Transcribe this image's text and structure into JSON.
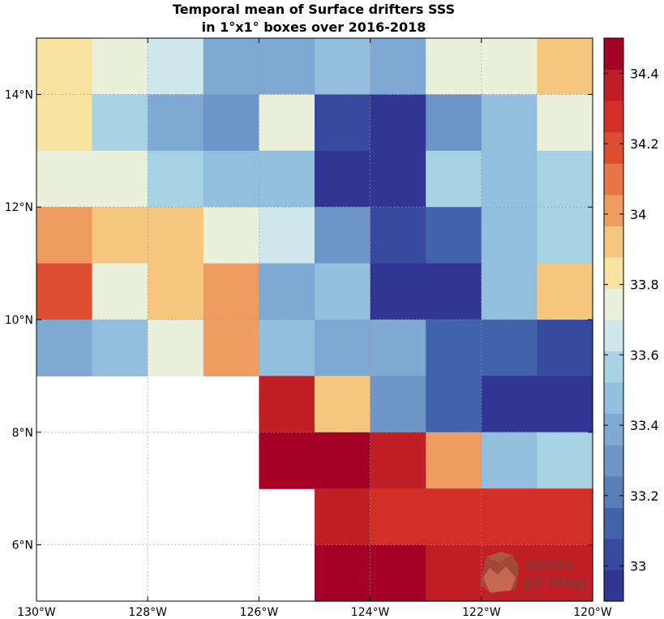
{
  "chart_data": {
    "type": "heatmap",
    "title": [
      "Temporal mean of Surface drifters SSS",
      "in 1°x1° boxes over 2016-2018"
    ],
    "x_edges": [
      -130,
      -129,
      -128,
      -127,
      -126,
      -125,
      -124,
      -123,
      -122,
      -121,
      -120
    ],
    "y_edges": [
      5,
      6,
      7,
      8,
      9,
      10,
      11,
      12,
      13,
      14,
      15
    ],
    "xlim": [
      -130,
      -120
    ],
    "ylim": [
      5,
      15
    ],
    "xticks": [
      -130,
      -128,
      -126,
      -124,
      -122,
      -120
    ],
    "xtick_labels": [
      "130°W",
      "128°W",
      "126°W",
      "124°W",
      "122°W",
      "120°W"
    ],
    "yticks": [
      6,
      8,
      10,
      12,
      14
    ],
    "ytick_labels": [
      "6°N",
      "8°N",
      "10°N",
      "12°N",
      "14°N"
    ],
    "grid": true,
    "values_rows_north_to_south": [
      [
        33.85,
        33.75,
        33.65,
        33.4,
        33.4,
        33.5,
        33.4,
        33.75,
        33.75,
        33.95
      ],
      [
        33.85,
        33.55,
        33.4,
        33.3,
        33.75,
        33.05,
        32.95,
        33.3,
        33.45,
        33.75
      ],
      [
        33.75,
        33.75,
        33.55,
        33.45,
        33.45,
        32.95,
        32.95,
        33.55,
        33.45,
        33.55
      ],
      [
        34.05,
        33.95,
        33.95,
        33.75,
        33.65,
        33.3,
        33.05,
        33.15,
        33.45,
        33.55
      ],
      [
        34.15,
        33.75,
        33.95,
        34.05,
        33.35,
        33.45,
        32.95,
        32.95,
        33.45,
        33.95
      ],
      [
        33.35,
        33.45,
        33.75,
        34.05,
        33.45,
        33.35,
        33.35,
        33.15,
        33.15,
        33.05
      ],
      [
        null,
        null,
        null,
        null,
        34.35,
        33.95,
        33.3,
        33.15,
        32.95,
        32.95
      ],
      [
        null,
        null,
        null,
        null,
        34.5,
        34.45,
        34.35,
        34.05,
        33.45,
        33.55
      ],
      [
        null,
        null,
        null,
        null,
        null,
        34.35,
        34.25,
        34.25,
        34.25,
        34.25
      ],
      [
        null,
        null,
        null,
        null,
        null,
        34.5,
        34.5,
        34.35,
        34.35,
        34.35
      ]
    ],
    "colorbar": {
      "range": [
        32.9,
        34.5
      ],
      "ticks": [
        33,
        33.2,
        33.4,
        33.6,
        33.8,
        34,
        34.2,
        34.4
      ],
      "tick_labels": [
        "33",
        "33.2",
        "33.4",
        "33.6",
        "33.8",
        "34",
        "34.2",
        "34.4"
      ],
      "colors_bottom_to_top": [
        "#313695",
        "#374a9f",
        "#4262ac",
        "#5a7eba",
        "#6d95c8",
        "#7da9d3",
        "#92bfdd",
        "#a6d2e3",
        "#cde7ed",
        "#eaf0da",
        "#f7e39f",
        "#f5c67e",
        "#ee9c62",
        "#e77547",
        "#dd4e31",
        "#d22f27",
        "#c01f26",
        "#a50026"
      ]
    }
  },
  "watermark": {
    "line1": "smos",
    "line2": "pi-mep"
  }
}
